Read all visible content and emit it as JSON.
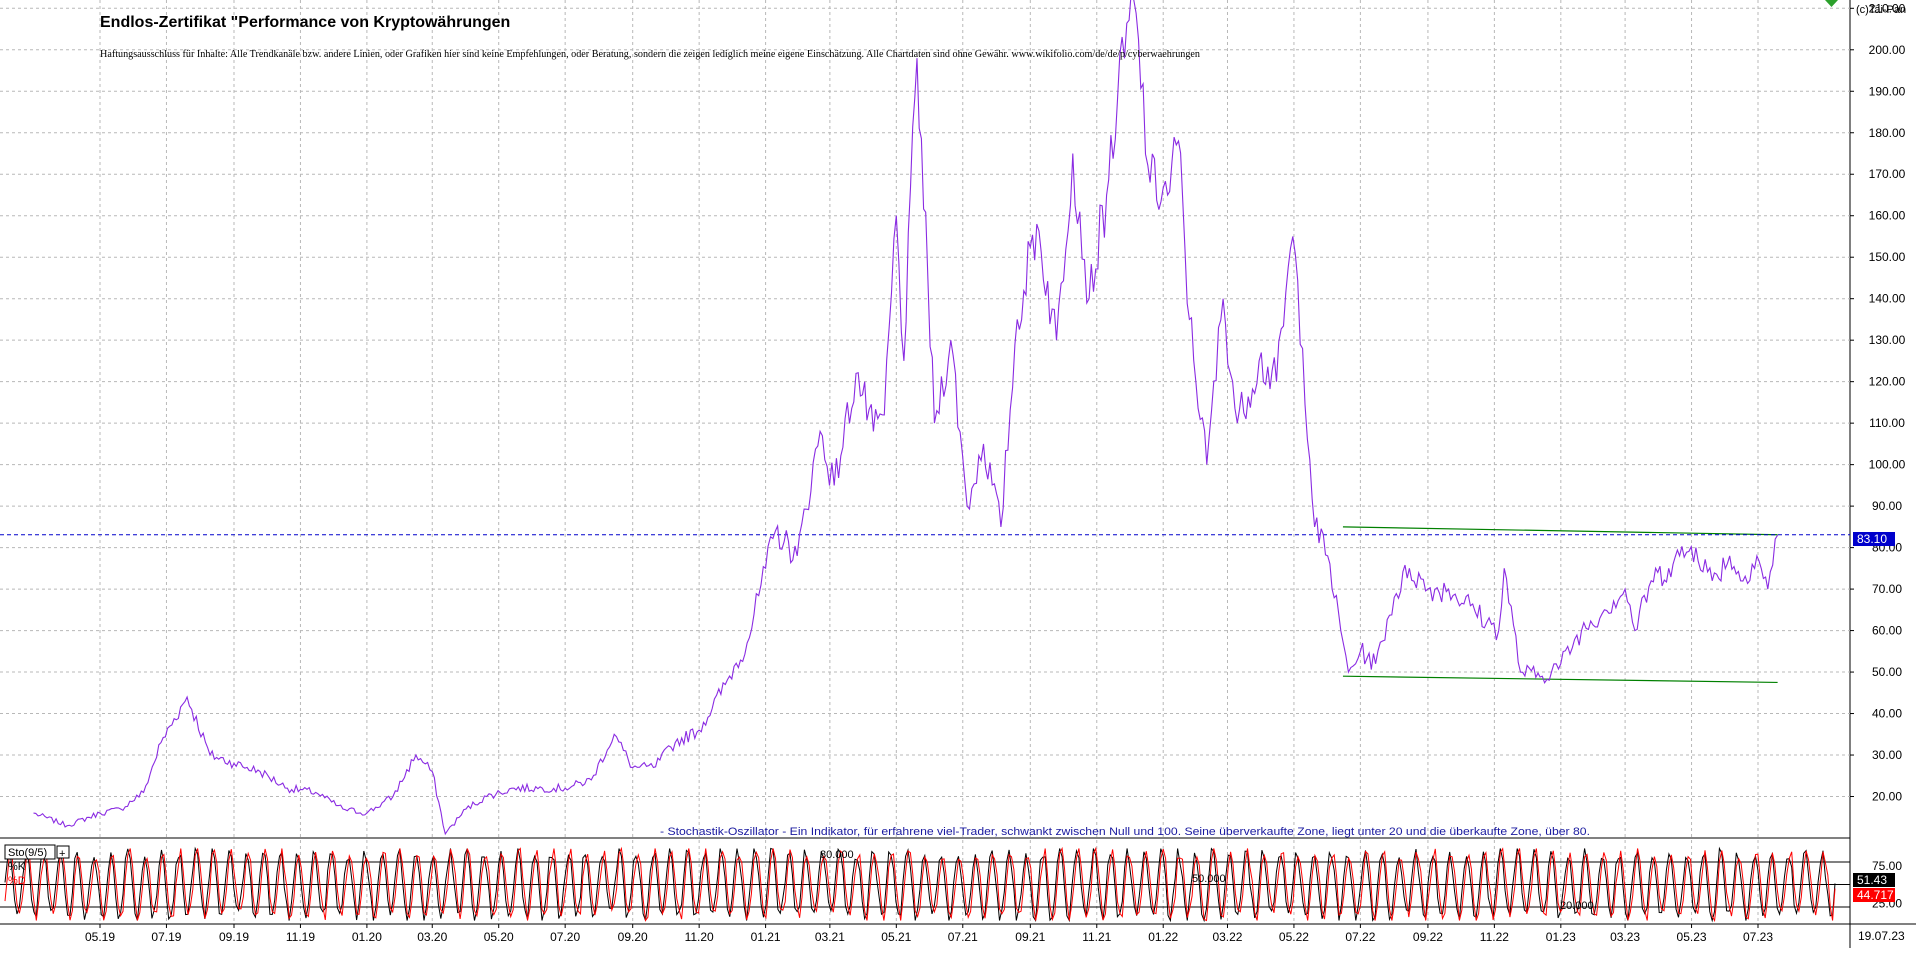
{
  "chart_data": [
    {
      "type": "line",
      "title": "Endlos-Zertifikat \"Performance von Kryptowährungen",
      "subtitle": "Haftungsausschluss für Inhalte: Alle Trendkanäle bzw. andere Linien, oder Grafiken hier sind keine Empfehlungen, oder Beratung, sondern die zeigen lediglich meine eigene Einschätzung. Alle Chartdaten sind ohne Gewähr. www.wikifolio.com/de/de/p/cyberwaehrungen",
      "copyright": "(c)Tai-Pan",
      "ylim": [
        10,
        212
      ],
      "y_ticks": [
        "20.00",
        "30.00",
        "40.00",
        "50.00",
        "60.00",
        "70.00",
        "80.00",
        "90.00",
        "100.00",
        "110.00",
        "120.00",
        "130.00",
        "140.00",
        "150.00",
        "160.00",
        "170.00",
        "180.00",
        "190.00",
        "200.00",
        "210.00"
      ],
      "x_ticks": [
        "05.19",
        "07.19",
        "09.19",
        "11.19",
        "01.20",
        "03.20",
        "05.20",
        "07.20",
        "09.20",
        "11.20",
        "01.21",
        "03.21",
        "05.21",
        "07.21",
        "09.21",
        "11.21",
        "01.22",
        "03.22",
        "05.22",
        "07.22",
        "09.22",
        "11.22",
        "01.23",
        "03.23",
        "05.23",
        "07.23"
      ],
      "last_date_label": "19.07.23",
      "current_value": "83.10",
      "grid": true,
      "series": [
        {
          "color": "#8a2be2",
          "x": [
            "2019-03-01",
            "2019-04-01",
            "2019-05-01",
            "2019-05-20",
            "2019-06-10",
            "2019-06-26",
            "2019-07-20",
            "2019-08-10",
            "2019-09-01",
            "2019-09-25",
            "2019-10-20",
            "2019-11-15",
            "2019-12-10",
            "2020-01-01",
            "2020-01-25",
            "2020-02-15",
            "2020-03-01",
            "2020-03-13",
            "2020-04-01",
            "2020-04-20",
            "2020-05-15",
            "2020-06-10",
            "2020-07-01",
            "2020-07-25",
            "2020-08-15",
            "2020-09-01",
            "2020-09-20",
            "2020-10-10",
            "2020-11-01",
            "2020-11-25",
            "2020-12-15",
            "2021-01-01",
            "2021-01-10",
            "2021-01-30",
            "2021-02-20",
            "2021-03-05",
            "2021-03-25",
            "2021-04-10",
            "2021-04-20",
            "2021-05-01",
            "2021-05-08",
            "2021-05-20",
            "2021-06-05",
            "2021-06-20",
            "2021-07-05",
            "2021-07-20",
            "2021-08-05",
            "2021-08-20",
            "2021-09-07",
            "2021-09-25",
            "2021-10-10",
            "2021-10-25",
            "2021-11-10",
            "2021-11-20",
            "2021-12-05",
            "2021-12-20",
            "2022-01-05",
            "2022-01-15",
            "2022-01-25",
            "2022-02-10",
            "2022-02-25",
            "2022-03-10",
            "2022-03-30",
            "2022-04-15",
            "2022-04-30",
            "2022-05-09",
            "2022-05-20",
            "2022-06-01",
            "2022-06-13",
            "2022-06-20",
            "2022-07-01",
            "2022-07-15",
            "2022-08-01",
            "2022-08-15",
            "2022-09-01",
            "2022-09-20",
            "2022-10-10",
            "2022-10-25",
            "2022-11-05",
            "2022-11-10",
            "2022-11-25",
            "2022-12-15",
            "2023-01-01",
            "2023-01-20",
            "2023-02-10",
            "2023-03-01",
            "2023-03-10",
            "2023-03-25",
            "2023-04-10",
            "2023-04-20",
            "2023-05-05",
            "2023-05-20",
            "2023-06-05",
            "2023-06-15",
            "2023-06-30",
            "2023-07-10",
            "2023-07-19"
          ],
          "values": [
            16,
            13,
            16,
            17,
            21,
            33,
            44,
            30,
            28,
            26,
            22,
            21,
            17,
            16,
            20,
            30,
            26,
            11,
            17,
            20,
            22,
            22,
            22,
            24,
            35,
            27,
            27,
            33,
            36,
            47,
            57,
            75,
            84,
            78,
            108,
            95,
            122,
            108,
            112,
            160,
            125,
            198,
            110,
            130,
            90,
            105,
            85,
            135,
            158,
            130,
            175,
            140,
            165,
            188,
            212,
            168,
            165,
            178,
            135,
            100,
            140,
            110,
            125,
            120,
            155,
            128,
            85,
            78,
            60,
            50,
            55,
            52,
            68,
            75,
            70,
            70,
            66,
            62,
            60,
            75,
            50,
            49,
            52,
            60,
            65,
            70,
            60,
            72,
            75,
            78,
            80,
            72,
            78,
            72,
            78,
            70,
            83
          ]
        }
      ],
      "trendlines": [
        {
          "color": "#008000",
          "x": [
            "2022-06-15",
            "2023-07-19"
          ],
          "values": [
            85,
            83.1
          ]
        },
        {
          "color": "#008000",
          "x": [
            "2022-06-15",
            "2023-07-19"
          ],
          "values": [
            49,
            47.5
          ]
        }
      ],
      "reference_lines": [
        {
          "color": "#0000cc",
          "value": 83.1,
          "style": "dashed"
        }
      ]
    },
    {
      "type": "line",
      "title": "- Stochastik-Oszillator - Ein Indikator, für erfahrene viel-Trader, schwankt zwischen Null und 100. Seine überverkaufte Zone, liegt unter 20 und die überkaufte Zone, über 80.",
      "indicator_label": "Sto(9/5)",
      "legend": [
        {
          "name": "%K",
          "color": "#000000"
        },
        {
          "name": "%D",
          "color": "#ff0000"
        }
      ],
      "ylim": [
        0,
        100
      ],
      "y_ticks": [
        "75.00",
        "25.00"
      ],
      "level_labels": [
        "80.000",
        "50.000",
        "20.000"
      ],
      "levels": [
        80,
        50,
        20
      ],
      "current_values": {
        "k": "51.43",
        "d": "44.717"
      },
      "series": [
        {
          "name": "%K",
          "color": "#000000",
          "cycles": 108,
          "phase": 0.0,
          "last": 51.43
        },
        {
          "name": "%D",
          "color": "#ff0000",
          "cycles": 108,
          "phase": 0.6,
          "last": 44.717
        }
      ]
    }
  ]
}
